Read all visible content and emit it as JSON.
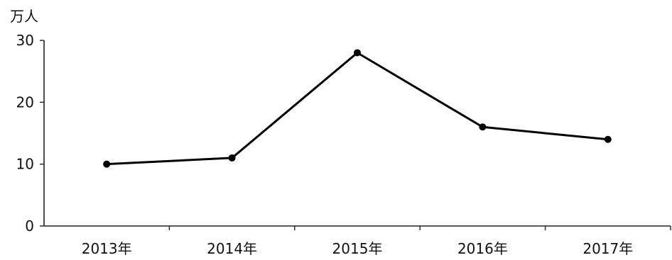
{
  "chart_data": {
    "type": "line",
    "unit_label": "万人",
    "categories": [
      "2013年",
      "2014年",
      "2015年",
      "2016年",
      "2017年"
    ],
    "series": [
      {
        "values": [
          10,
          11,
          28,
          16,
          14
        ]
      }
    ],
    "yticks": [
      0,
      10,
      20,
      30
    ],
    "ylim": [
      0,
      30
    ],
    "grid": false,
    "legend": "none",
    "colors": {
      "line": "#000000",
      "axis": "#222222",
      "text": "#111111"
    }
  }
}
